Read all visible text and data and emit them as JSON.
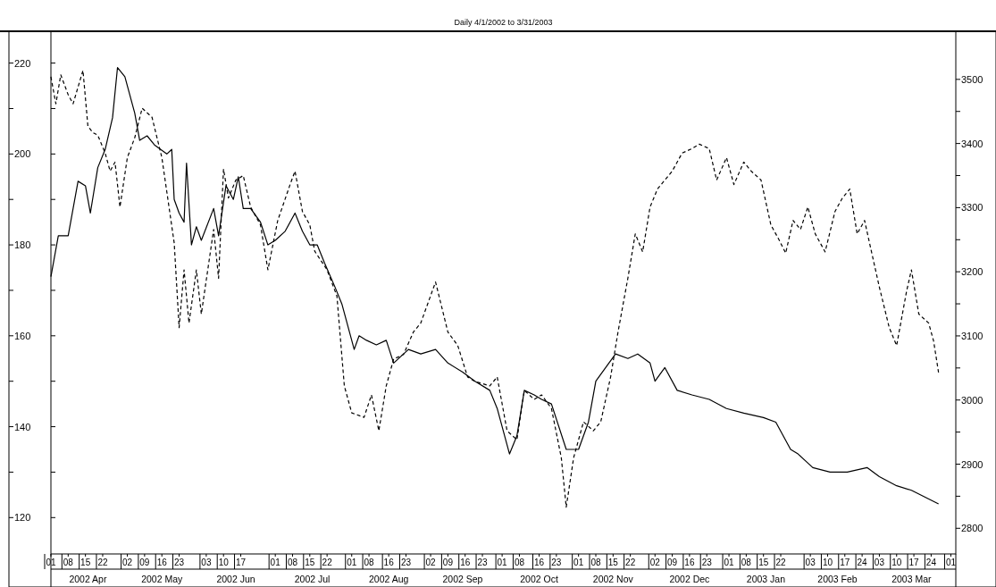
{
  "chart_data": {
    "type": "line",
    "title": "Daily 4/1/2002 to 3/31/2003",
    "xlim": [
      "2002-04-01",
      "2003-04-03"
    ],
    "xticks": [
      {
        "value": "2002-04-01",
        "label": "01"
      },
      {
        "value": "2002-04-08",
        "label": "08"
      },
      {
        "value": "2002-04-15",
        "label": "15"
      },
      {
        "value": "2002-04-22",
        "label": "22"
      },
      {
        "value": "2002-05-02",
        "label": "02"
      },
      {
        "value": "2002-05-09",
        "label": "09"
      },
      {
        "value": "2002-05-16",
        "label": "16"
      },
      {
        "value": "2002-05-23",
        "label": "23"
      },
      {
        "value": "2002-06-03",
        "label": "03"
      },
      {
        "value": "2002-06-10",
        "label": "10"
      },
      {
        "value": "2002-06-17",
        "label": "17"
      },
      {
        "value": "2002-07-01",
        "label": "01"
      },
      {
        "value": "2002-07-08",
        "label": "08"
      },
      {
        "value": "2002-07-15",
        "label": "15"
      },
      {
        "value": "2002-07-22",
        "label": "22"
      },
      {
        "value": "2002-08-01",
        "label": "01"
      },
      {
        "value": "2002-08-08",
        "label": "08"
      },
      {
        "value": "2002-08-16",
        "label": "16"
      },
      {
        "value": "2002-08-23",
        "label": "23"
      },
      {
        "value": "2002-09-02",
        "label": "02"
      },
      {
        "value": "2002-09-09",
        "label": "09"
      },
      {
        "value": "2002-09-16",
        "label": "16"
      },
      {
        "value": "2002-09-23",
        "label": "23"
      },
      {
        "value": "2002-10-01",
        "label": "01"
      },
      {
        "value": "2002-10-08",
        "label": "08"
      },
      {
        "value": "2002-10-16",
        "label": "16"
      },
      {
        "value": "2002-10-23",
        "label": "23"
      },
      {
        "value": "2002-11-01",
        "label": "01"
      },
      {
        "value": "2002-11-08",
        "label": "08"
      },
      {
        "value": "2002-11-15",
        "label": "15"
      },
      {
        "value": "2002-11-22",
        "label": "22"
      },
      {
        "value": "2002-12-02",
        "label": "02"
      },
      {
        "value": "2002-12-09",
        "label": "09"
      },
      {
        "value": "2002-12-16",
        "label": "16"
      },
      {
        "value": "2002-12-23",
        "label": "23"
      },
      {
        "value": "2003-01-01",
        "label": "01"
      },
      {
        "value": "2003-01-08",
        "label": "08"
      },
      {
        "value": "2003-01-15",
        "label": "15"
      },
      {
        "value": "2003-01-22",
        "label": "22"
      },
      {
        "value": "2003-02-03",
        "label": "03"
      },
      {
        "value": "2003-02-10",
        "label": "10"
      },
      {
        "value": "2003-02-17",
        "label": "17"
      },
      {
        "value": "2003-02-24",
        "label": "24"
      },
      {
        "value": "2003-03-03",
        "label": "03"
      },
      {
        "value": "2003-03-10",
        "label": "10"
      },
      {
        "value": "2003-03-17",
        "label": "17"
      },
      {
        "value": "2003-03-24",
        "label": "24"
      },
      {
        "value": "2003-04-01",
        "label": "01"
      }
    ],
    "x2lim": [
      "2002-04-01",
      "2003-04-03"
    ],
    "x2ticks": [
      {
        "value": "2002-04-16",
        "label": "2002 Apr"
      },
      {
        "value": "2002-05-16",
        "label": "2002 May"
      },
      {
        "value": "2002-06-15",
        "label": "2002 Jun"
      },
      {
        "value": "2002-07-16",
        "label": "2002 Jul"
      },
      {
        "value": "2002-08-16",
        "label": "2002 Aug"
      },
      {
        "value": "2002-09-15",
        "label": "2002 Sep"
      },
      {
        "value": "2002-10-16",
        "label": "2002 Oct"
      },
      {
        "value": "2002-11-15",
        "label": "2002 Nov"
      },
      {
        "value": "2002-12-16",
        "label": "2002 Dec"
      },
      {
        "value": "2003-01-16",
        "label": "2003 Jan"
      },
      {
        "value": "2003-02-14",
        "label": "2003 Feb"
      },
      {
        "value": "2003-03-16",
        "label": "2003 Mar"
      }
    ],
    "ylim": [
      112,
      227
    ],
    "yticks": [
      120,
      {
        "value": 130,
        "label": null
      },
      140,
      {
        "value": 150,
        "label": null
      },
      160,
      {
        "value": 170,
        "label": null
      },
      180,
      {
        "value": 190,
        "label": null
      },
      200,
      {
        "value": 210,
        "label": null
      },
      220
    ],
    "y2lim": [
      2760,
      3575
    ],
    "y2ticks": [
      2800,
      {
        "value": 2850,
        "label": null
      },
      2900,
      {
        "value": 2950,
        "label": null
      },
      3000,
      {
        "value": 3050,
        "label": null
      },
      3100,
      {
        "value": 3150,
        "label": null
      },
      3200,
      {
        "value": 3250,
        "label": null
      },
      3300,
      {
        "value": 3350,
        "label": null
      },
      3400,
      {
        "value": 3450,
        "label": null
      },
      3500
    ],
    "grid": false,
    "series": [
      {
        "color": "#000000",
        "line_style": "solid",
        "x": [
          "2002-04-01",
          "2002-04-04",
          "2002-04-08",
          "2002-04-12",
          "2002-04-15",
          "2002-04-17",
          "2002-04-20",
          "2002-04-23",
          "2002-04-26",
          "2002-04-28",
          "2002-05-01",
          "2002-05-05",
          "2002-05-07",
          "2002-05-10",
          "2002-05-13",
          "2002-05-18",
          "2002-05-20",
          "2002-05-21",
          "2002-05-23",
          "2002-05-25",
          "2002-05-26",
          "2002-05-28",
          "2002-05-30",
          "2002-06-01",
          "2002-06-06",
          "2002-06-08",
          "2002-06-11",
          "2002-06-14",
          "2002-06-16",
          "2002-06-18",
          "2002-06-21",
          "2002-06-25",
          "2002-06-28",
          "2002-07-01",
          "2002-07-05",
          "2002-07-09",
          "2002-07-12",
          "2002-07-15",
          "2002-07-18",
          "2002-07-21",
          "2002-07-25",
          "2002-07-28",
          "2002-08-02",
          "2002-08-04",
          "2002-08-07",
          "2002-08-11",
          "2002-08-15",
          "2002-08-18",
          "2002-08-24",
          "2002-08-29",
          "2002-09-04",
          "2002-09-09",
          "2002-09-15",
          "2002-09-20",
          "2002-09-26",
          "2002-09-29",
          "2002-10-04",
          "2002-10-07",
          "2002-10-10",
          "2002-10-14",
          "2002-10-17",
          "2002-10-21",
          "2002-10-27",
          "2002-11-01",
          "2002-11-05",
          "2002-11-08",
          "2002-11-16",
          "2002-11-21",
          "2002-11-25",
          "2002-11-30",
          "2002-12-02",
          "2002-12-06",
          "2002-12-11",
          "2002-12-17",
          "2002-12-24",
          "2002-12-31",
          "2003-01-07",
          "2003-01-15",
          "2003-01-20",
          "2003-01-26",
          "2003-01-29",
          "2003-02-04",
          "2003-02-11",
          "2003-02-18",
          "2003-02-26",
          "2003-03-03",
          "2003-03-10",
          "2003-03-16",
          "2003-03-27"
        ],
        "values": [
          173,
          182,
          182,
          194,
          193,
          187,
          197,
          201,
          208,
          219,
          217,
          209,
          203,
          204,
          202,
          200,
          201,
          190,
          187,
          185,
          198,
          180,
          184,
          181,
          188,
          182,
          193,
          190,
          195,
          188,
          188,
          185,
          180,
          181,
          183,
          187,
          183,
          180,
          180,
          176,
          171,
          167,
          157,
          160,
          159,
          158,
          159,
          154,
          157,
          156,
          157,
          154,
          152,
          150,
          148,
          144,
          134,
          138,
          148,
          147,
          146,
          145,
          135,
          135,
          141,
          150,
          156,
          155,
          156,
          154,
          150,
          153,
          148,
          147,
          146,
          144,
          143,
          142,
          141,
          135,
          134,
          131,
          130,
          130,
          131,
          129,
          127,
          126,
          123
        ]
      },
      {
        "color": "#000000",
        "line_style": "dashed",
        "axis": "y2",
        "x": [
          "2002-04-01",
          "2002-04-03",
          "2002-04-05",
          "2002-04-08",
          "2002-04-10",
          "2002-04-14",
          "2002-04-16",
          "2002-04-18",
          "2002-04-20",
          "2002-04-23",
          "2002-04-25",
          "2002-04-27",
          "2002-04-29",
          "2002-05-02",
          "2002-05-05",
          "2002-05-08",
          "2002-05-12",
          "2002-05-16",
          "2002-05-21",
          "2002-05-23",
          "2002-05-25",
          "2002-05-27",
          "2002-05-30",
          "2002-06-01",
          "2002-06-06",
          "2002-06-08",
          "2002-06-10",
          "2002-06-12",
          "2002-06-15",
          "2002-06-18",
          "2002-06-21",
          "2002-06-25",
          "2002-06-28",
          "2002-07-02",
          "2002-07-07",
          "2002-07-09",
          "2002-07-12",
          "2002-07-15",
          "2002-07-17",
          "2002-07-22",
          "2002-07-26",
          "2002-07-29",
          "2002-08-01",
          "2002-08-06",
          "2002-08-09",
          "2002-08-12",
          "2002-08-15",
          "2002-08-18",
          "2002-08-22",
          "2002-08-26",
          "2002-08-29",
          "2002-09-04",
          "2002-09-09",
          "2002-09-13",
          "2002-09-17",
          "2002-09-20",
          "2002-09-26",
          "2002-09-29",
          "2002-10-03",
          "2002-10-07",
          "2002-10-10",
          "2002-10-14",
          "2002-10-17",
          "2002-10-21",
          "2002-10-25",
          "2002-10-27",
          "2002-10-30",
          "2002-11-03",
          "2002-11-07",
          "2002-11-10",
          "2002-11-14",
          "2002-11-17",
          "2002-11-21",
          "2002-11-24",
          "2002-11-27",
          "2002-11-30",
          "2002-12-03",
          "2002-12-06",
          "2002-12-09",
          "2002-12-13",
          "2002-12-17",
          "2002-12-20",
          "2002-12-24",
          "2002-12-27",
          "2002-12-31",
          "2003-01-03",
          "2003-01-07",
          "2003-01-10",
          "2003-01-14",
          "2003-01-18",
          "2003-01-21",
          "2003-01-24",
          "2003-01-27",
          "2003-01-30",
          "2003-02-02",
          "2003-02-05",
          "2003-02-09",
          "2003-02-13",
          "2003-02-16",
          "2003-02-19",
          "2003-02-22",
          "2003-02-25",
          "2003-02-27",
          "2003-03-03",
          "2003-03-07",
          "2003-03-10",
          "2003-03-14",
          "2003-03-16",
          "2003-03-19",
          "2003-03-23",
          "2003-03-25",
          "2003-03-27"
        ],
        "values": [
          3504,
          3462,
          3507,
          3476,
          3462,
          3514,
          3427,
          3417,
          3413,
          3385,
          3357,
          3371,
          3301,
          3378,
          3409,
          3455,
          3441,
          3378,
          3245,
          3113,
          3203,
          3120,
          3203,
          3134,
          3266,
          3190,
          3360,
          3315,
          3343,
          3350,
          3301,
          3273,
          3203,
          3280,
          3336,
          3357,
          3294,
          3273,
          3232,
          3203,
          3162,
          3022,
          2980,
          2973,
          3008,
          2952,
          3022,
          3064,
          3071,
          3106,
          3120,
          3184,
          3106,
          3085,
          3036,
          3029,
          3022,
          3036,
          2952,
          2938,
          3015,
          3001,
          3008,
          2987,
          2910,
          2833,
          2910,
          2966,
          2952,
          2966,
          3036,
          3106,
          3190,
          3259,
          3231,
          3301,
          3329,
          3343,
          3357,
          3385,
          3392,
          3399,
          3392,
          3343,
          3378,
          3336,
          3371,
          3357,
          3343,
          3273,
          3252,
          3229,
          3280,
          3266,
          3301,
          3259,
          3231,
          3294,
          3315,
          3329,
          3259,
          3280,
          3245,
          3176,
          3113,
          3085,
          3169,
          3203,
          3134,
          3120,
          3092,
          3043
        ]
      }
    ]
  }
}
